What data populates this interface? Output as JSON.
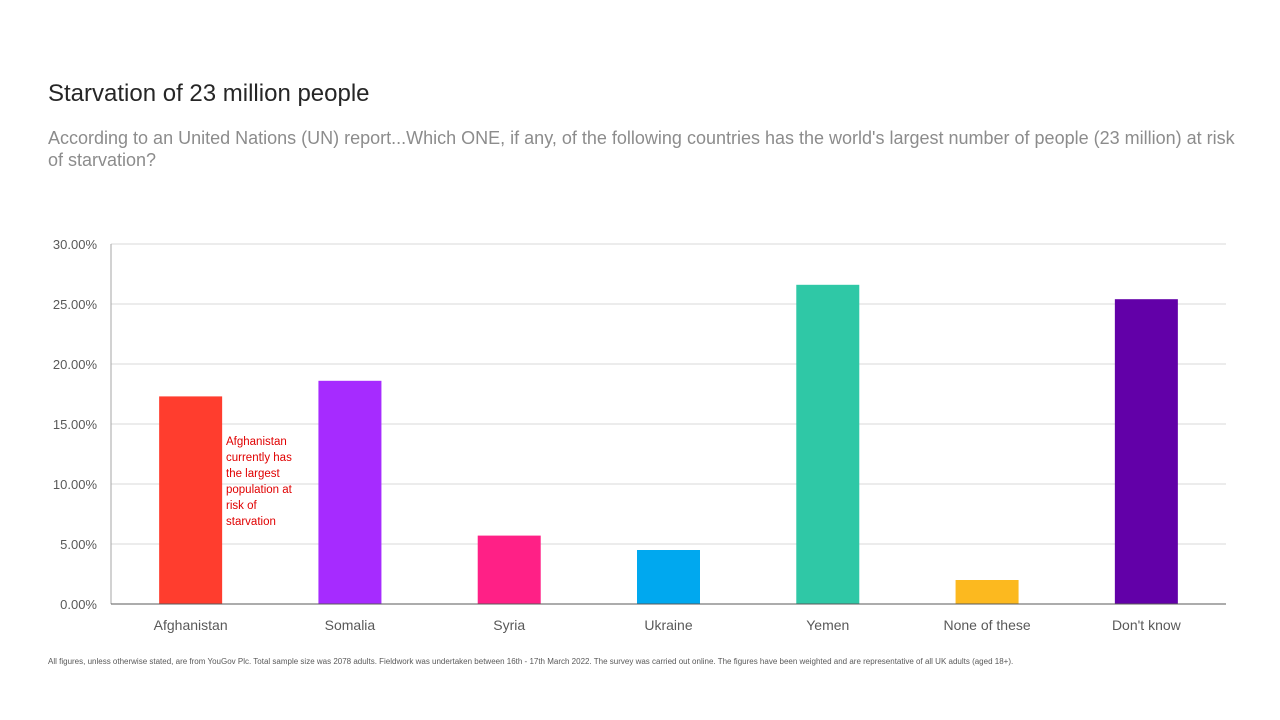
{
  "header": {
    "title": "Starvation of 23 million people",
    "subtitle": "According to an United Nations (UN) report...Which ONE, if any, of the following countries has the world's largest number of people (23 million) at risk of starvation?"
  },
  "annotation": {
    "text": "Afghanistan currently has the largest population at risk of starvation",
    "color": "#e00000"
  },
  "footnote": "All figures, unless otherwise stated, are from YouGov Plc. Total sample size was 2078 adults. Fieldwork was undertaken between 16th - 17th March 2022. The survey was carried out online. The figures have been weighted and are representative of all UK adults (aged 18+).",
  "chart_data": {
    "type": "bar",
    "title": "Starvation of 23 million people",
    "xlabel": "",
    "ylabel": "",
    "categories": [
      "Afghanistan",
      "Somalia",
      "Syria",
      "Ukraine",
      "Yemen",
      "None of these",
      "Don't know"
    ],
    "values": [
      17.3,
      18.6,
      5.7,
      4.5,
      26.6,
      2.0,
      25.4
    ],
    "colors": [
      "#ff3d2e",
      "#a62bff",
      "#ff2086",
      "#00a8ef",
      "#2fc8a6",
      "#fcb91f",
      "#6200a8"
    ],
    "ylim": [
      0,
      30
    ],
    "yticks": [
      0,
      5,
      10,
      15,
      20,
      25,
      30
    ],
    "ytick_labels": [
      "0.00%",
      "5.00%",
      "10.00%",
      "15.00%",
      "20.00%",
      "25.00%",
      "30.00%"
    ],
    "grid": true,
    "legend": "none"
  }
}
